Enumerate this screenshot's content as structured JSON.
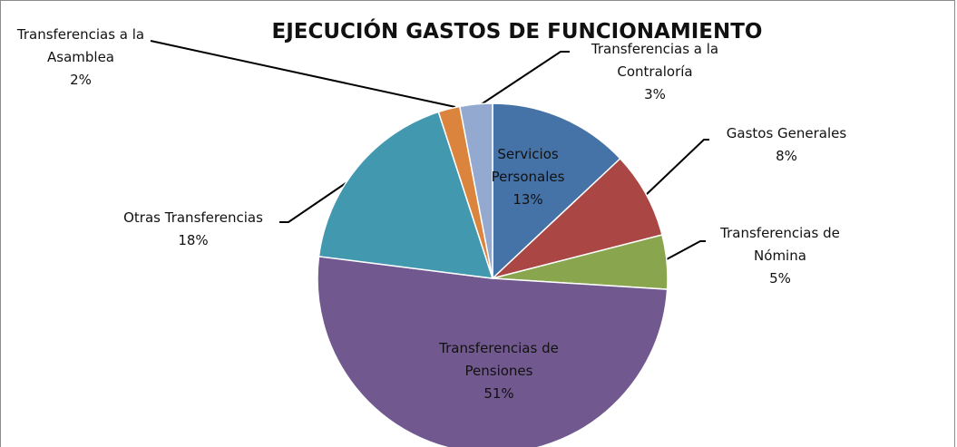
{
  "chart_data": {
    "type": "pie",
    "title": "EJECUCIÓN GASTOS DE FUNCIONAMIENTO",
    "categories": [
      "Servicios Personales",
      "Gastos Generales",
      "Transferencias de Nómina",
      "Transferencias de Pensiones",
      "Otras Transferencias",
      "Transferencias a la Asamblea",
      "Transferencias a la Contraloría"
    ],
    "values": [
      13,
      8,
      5,
      51,
      18,
      2,
      3
    ],
    "value_labels": [
      "13%",
      "8%",
      "5%",
      "51%",
      "18%",
      "2%",
      "3%"
    ],
    "colors": [
      "#4572a7",
      "#aa4643",
      "#89a54e",
      "#71588f",
      "#4198af",
      "#db843d",
      "#93a9cf"
    ]
  }
}
